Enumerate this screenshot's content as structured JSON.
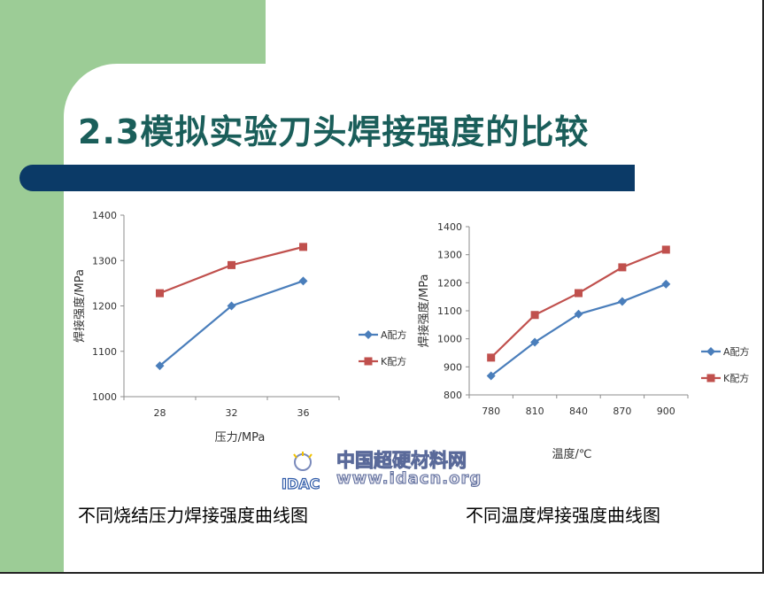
{
  "slide": {
    "title": "2.3模拟实验刀头焊接强度的比较",
    "colors": {
      "green": "#9ccc96",
      "title": "#1a5e5a",
      "bar": "#0b3a67"
    }
  },
  "captions": {
    "left": "不同烧结压力焊接强度曲线图",
    "right": "不同温度焊接强度曲线图"
  },
  "watermark": {
    "logo_text": "IDAC",
    "name": "中国超硬材料网",
    "url": "www.idacn.org"
  },
  "chart_data": [
    {
      "type": "line",
      "x": [
        "28",
        "32",
        "36"
      ],
      "xlabel": "压力/MPa",
      "ylabel": "焊接强度/MPa",
      "ylim": [
        1000,
        1400
      ],
      "yticks": [
        1000,
        1100,
        1200,
        1300,
        1400
      ],
      "grid": false,
      "legend": "right",
      "series": [
        {
          "name": "A配方",
          "values": [
            1068,
            1200,
            1255
          ],
          "color": "#4a7ebb",
          "marker": "diamond"
        },
        {
          "name": "K配方",
          "values": [
            1228,
            1290,
            1330
          ],
          "color": "#c0504d",
          "marker": "square"
        }
      ]
    },
    {
      "type": "line",
      "x": [
        "780",
        "810",
        "840",
        "870",
        "900"
      ],
      "xlabel": "温度/℃",
      "ylabel": "焊接强度/MPa",
      "ylim": [
        800,
        1400
      ],
      "yticks": [
        800,
        900,
        1000,
        1100,
        1200,
        1300,
        1400
      ],
      "grid": false,
      "legend": "right",
      "series": [
        {
          "name": "A配方",
          "values": [
            868,
            988,
            1088,
            1133,
            1195
          ],
          "color": "#4a7ebb",
          "marker": "diamond"
        },
        {
          "name": "K配方",
          "values": [
            933,
            1085,
            1163,
            1255,
            1318
          ],
          "color": "#c0504d",
          "marker": "square"
        }
      ]
    }
  ]
}
